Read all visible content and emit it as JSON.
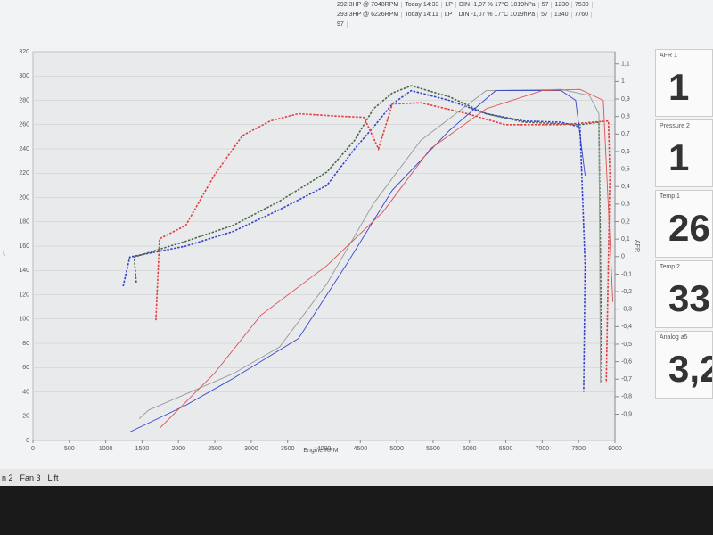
{
  "header": {
    "rows": [
      [
        "292,3HP @ 7048RPM",
        "Today 14:33",
        "LP",
        "DIN -1,07 %  17°C 1019hPa",
        "57",
        "1230",
        "7530"
      ],
      [
        "293,3HP @ 6226RPM",
        "Today 14:11",
        "LP",
        "DIN -1,07 %  17°C 1019hPa",
        "57",
        "1340",
        "7760"
      ],
      [
        "97"
      ]
    ]
  },
  "chart_data": {
    "type": "line",
    "x_label": "Engine RPM",
    "y_label": "t",
    "y2_label": "AFR",
    "xlim": [
      0,
      8000
    ],
    "xticks": [
      0,
      500,
      1000,
      1500,
      2000,
      2500,
      3000,
      3500,
      4000,
      4500,
      5000,
      5500,
      6000,
      6500,
      7000,
      7500,
      8000
    ],
    "ylim": [
      0,
      320
    ],
    "yticks": [
      0,
      20,
      40,
      60,
      80,
      100,
      120,
      140,
      160,
      180,
      200,
      220,
      240,
      260,
      280,
      300,
      320
    ],
    "y2lim": [
      -1.05,
      1.17
    ],
    "y2ticks": [
      {
        "value": 1.1,
        "label": "1,1"
      },
      1,
      {
        "value": 0.9,
        "label": "0,9"
      },
      {
        "value": 0.8,
        "label": "0,8"
      },
      {
        "value": 0.7,
        "label": "0,7"
      },
      {
        "value": 0.6,
        "label": "0,6"
      },
      {
        "value": 0.5,
        "label": "0,5"
      },
      {
        "value": 0.4,
        "label": "0,4"
      },
      {
        "value": 0.3,
        "label": "0,3"
      },
      {
        "value": 0.2,
        "label": "0,2"
      },
      {
        "value": 0.1,
        "label": "0,1"
      },
      0,
      {
        "value": -0.1,
        "label": "-0,1"
      },
      {
        "value": -0.2,
        "label": "-0,2"
      },
      {
        "value": -0.3,
        "label": "-0,3"
      },
      {
        "value": -0.4,
        "label": "-0,4"
      },
      {
        "value": -0.5,
        "label": "-0,5"
      },
      {
        "value": -0.6,
        "label": "-0,6"
      },
      {
        "value": -0.7,
        "label": "-0,7"
      },
      {
        "value": -0.8,
        "label": "-0,8"
      },
      {
        "value": -0.9,
        "label": "-0,9"
      }
    ],
    "grid": true,
    "series": [
      {
        "color": "#3344cc",
        "dashed": true,
        "x": [
          1240,
          1330,
          2100,
          2750,
          3390,
          4040,
          4420,
          4680,
          4940,
          5200,
          5720,
          6230,
          6750,
          7260,
          7520,
          7590,
          7570
        ],
        "values": [
          127,
          151,
          160,
          172,
          190,
          210,
          240,
          258,
          277,
          288,
          280,
          269,
          263,
          262,
          258,
          144,
          40
        ]
      },
      {
        "color": "#4a6a4a",
        "dashed": true,
        "x": [
          1420,
          1390,
          2100,
          2750,
          3390,
          4040,
          4420,
          4680,
          4940,
          5200,
          5720,
          6230,
          6750,
          7520,
          7780,
          7820
        ],
        "values": [
          130,
          151,
          164,
          177,
          197,
          221,
          247,
          273,
          286,
          292,
          283,
          269,
          262,
          260,
          262,
          47
        ]
      },
      {
        "color": "#e04040",
        "dashed": true,
        "x": [
          1690,
          1740,
          2100,
          2490,
          2880,
          3260,
          3650,
          4170,
          4550,
          4750,
          4940,
          5330,
          5970,
          6490,
          7260,
          7910,
          7930,
          7880
        ],
        "values": [
          99,
          166,
          177,
          218,
          251,
          263,
          269,
          267,
          266,
          240,
          277,
          278,
          269,
          260,
          260,
          263,
          218,
          47
        ]
      },
      {
        "color": "#999999",
        "dashed": false,
        "x": [
          1460,
          1590,
          2750,
          3390,
          4040,
          4680,
          5330,
          6230,
          7260,
          7650,
          7780,
          7800
        ],
        "values": [
          18,
          25,
          55,
          77,
          129,
          195,
          247,
          288,
          289,
          284,
          269,
          47
        ]
      },
      {
        "color": "#3344cc",
        "dashed": false,
        "x": [
          1330,
          2100,
          2750,
          3650,
          4300,
          4940,
          5720,
          6360,
          7260,
          7460,
          7590
        ],
        "values": [
          7,
          29,
          51,
          84,
          144,
          206,
          255,
          288,
          288,
          280,
          218
        ]
      },
      {
        "color": "#e05050",
        "dashed": false,
        "x": [
          1740,
          2490,
          3130,
          4040,
          4810,
          5460,
          6230,
          7000,
          7520,
          7840,
          7970
        ],
        "values": [
          10,
          55,
          103,
          144,
          188,
          240,
          273,
          288,
          289,
          280,
          114
        ]
      }
    ]
  },
  "panels": [
    {
      "label": "AFR 1",
      "value": "1"
    },
    {
      "label": "Pressure 2",
      "value": "1"
    },
    {
      "label": "Temp 1",
      "value": "26"
    },
    {
      "label": "Temp 2",
      "value": "33"
    },
    {
      "label": "Analog a5",
      "value": "3,2"
    }
  ],
  "taskbar": {
    "items": [
      "n 2",
      "Fan 3",
      "Lift"
    ]
  }
}
